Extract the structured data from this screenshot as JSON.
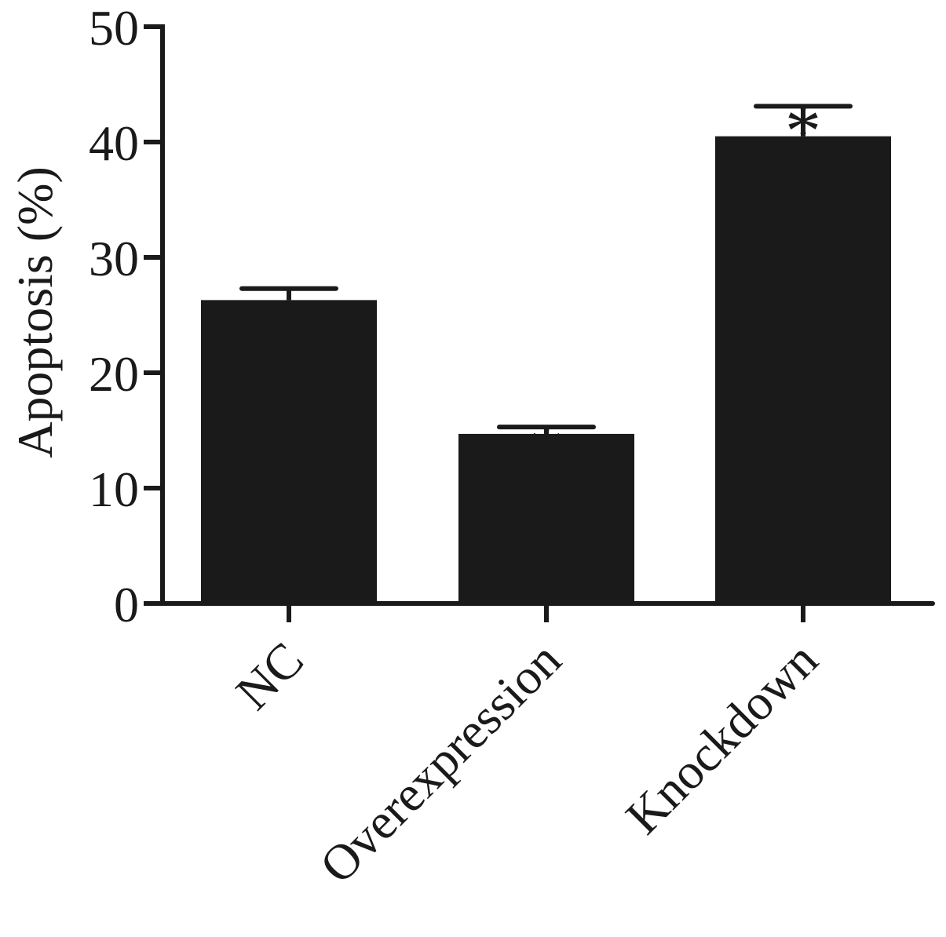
{
  "chart_data": {
    "type": "bar",
    "title": "",
    "xlabel": "",
    "ylabel": "Apoptosis (%)",
    "ylim": [
      0,
      50
    ],
    "yticks": [
      0,
      10,
      20,
      30,
      40,
      50
    ],
    "ytick_labels": [
      "0",
      "10",
      "20",
      "30",
      "40",
      "50"
    ],
    "categories": [
      "NC",
      "Overexpression",
      "Knockdown"
    ],
    "values": [
      26.3,
      14.7,
      40.5
    ],
    "errors": [
      1.0,
      0.6,
      2.6
    ],
    "annotations": [
      "",
      "*",
      "*"
    ],
    "grid": false,
    "legend": "none",
    "colors": {
      "bar": "#1a1a1a",
      "axis": "#1a1a1a",
      "background": "#ffffff"
    }
  }
}
